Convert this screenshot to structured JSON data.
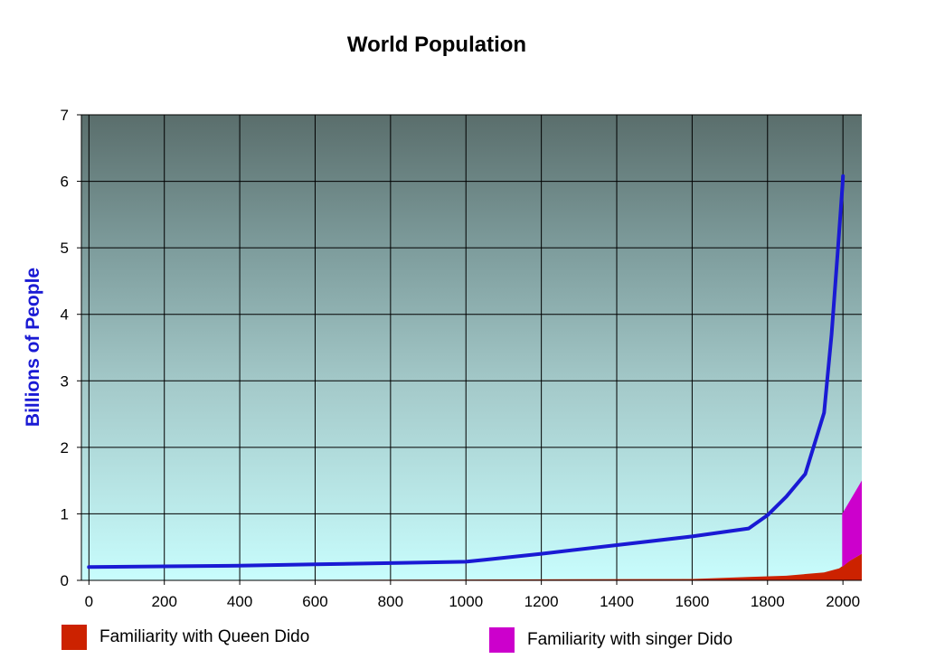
{
  "chart_data": {
    "type": "line",
    "title": "World Population",
    "xlabel": "",
    "ylabel": "Billions of People",
    "xlim": [
      -20,
      2050
    ],
    "ylim": [
      0,
      7
    ],
    "x_ticks": [
      "0",
      "200",
      "400",
      "600",
      "800",
      "1000",
      "1200",
      "1400",
      "1600",
      "1800",
      "2000"
    ],
    "y_ticks": [
      "0",
      "1",
      "2",
      "3",
      "4",
      "5",
      "6",
      "7"
    ],
    "grid": true,
    "legend_position": "bottom",
    "series": [
      {
        "kind": "line",
        "color": "#1a1ad4",
        "points": [
          [
            0,
            0.2
          ],
          [
            200,
            0.21
          ],
          [
            400,
            0.22
          ],
          [
            600,
            0.24
          ],
          [
            800,
            0.26
          ],
          [
            1000,
            0.28
          ],
          [
            1050,
            0.31
          ],
          [
            1200,
            0.4
          ],
          [
            1400,
            0.53
          ],
          [
            1600,
            0.66
          ],
          [
            1750,
            0.78
          ],
          [
            1800,
            0.98
          ],
          [
            1850,
            1.26
          ],
          [
            1900,
            1.6
          ],
          [
            1950,
            2.52
          ],
          [
            1970,
            3.7
          ],
          [
            1987,
            5.0
          ],
          [
            1999,
            5.95
          ],
          [
            2000,
            6.08
          ]
        ]
      },
      {
        "kind": "area",
        "name": "Familiarity with Queen Dido",
        "color": "#cc2200",
        "points": [
          [
            -20,
            0.0
          ],
          [
            1600,
            0.02
          ],
          [
            1750,
            0.05
          ],
          [
            1850,
            0.07
          ],
          [
            1950,
            0.12
          ],
          [
            1990,
            0.18
          ],
          [
            2020,
            0.3
          ],
          [
            2050,
            0.4
          ],
          [
            2050,
            0.0
          ]
        ]
      },
      {
        "kind": "area",
        "name": "Familiarity with singer Dido",
        "color": "#cc00cc",
        "points": [
          [
            1998,
            0.2
          ],
          [
            1998,
            1.0
          ],
          [
            2050,
            1.5
          ],
          [
            2050,
            0.4
          ],
          [
            2020,
            0.3
          ]
        ]
      }
    ]
  }
}
